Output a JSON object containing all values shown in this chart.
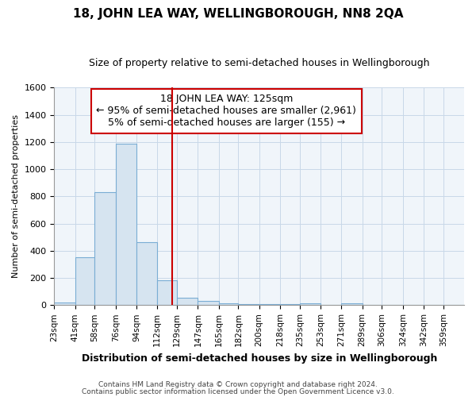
{
  "title": "18, JOHN LEA WAY, WELLINGBOROUGH, NN8 2QA",
  "subtitle": "Size of property relative to semi-detached houses in Wellingborough",
  "xlabel": "Distribution of semi-detached houses by size in Wellingborough",
  "ylabel": "Number of semi-detached properties",
  "footnote1": "Contains HM Land Registry data © Crown copyright and database right 2024.",
  "footnote2": "Contains public sector information licensed under the Open Government Licence v3.0.",
  "bins": [
    23,
    41,
    58,
    76,
    94,
    112,
    129,
    147,
    165,
    182,
    200,
    218,
    235,
    253,
    271,
    289,
    306,
    324,
    342,
    359,
    377
  ],
  "bar_heights": [
    20,
    350,
    830,
    1185,
    465,
    185,
    55,
    30,
    15,
    5,
    5,
    5,
    15,
    0,
    15,
    0,
    0,
    0,
    0,
    0
  ],
  "bar_facecolor": "#d6e4f0",
  "bar_edgecolor": "#7aadd4",
  "fig_bg_color": "#ffffff",
  "plot_bg_color": "#f0f5fa",
  "grid_color": "#c8d8e8",
  "vline_x": 125,
  "vline_color": "#cc0000",
  "annotation_line1": "18 JOHN LEA WAY: 125sqm",
  "annotation_line2": "← 95% of semi-detached houses are smaller (2,961)",
  "annotation_line3": "5% of semi-detached houses are larger (155) →",
  "ylim": [
    0,
    1600
  ],
  "yticks": [
    0,
    200,
    400,
    600,
    800,
    1000,
    1200,
    1400,
    1600
  ],
  "title_fontsize": 11,
  "subtitle_fontsize": 9,
  "annotation_fontsize": 9,
  "ylabel_fontsize": 8,
  "xlabel_fontsize": 9
}
